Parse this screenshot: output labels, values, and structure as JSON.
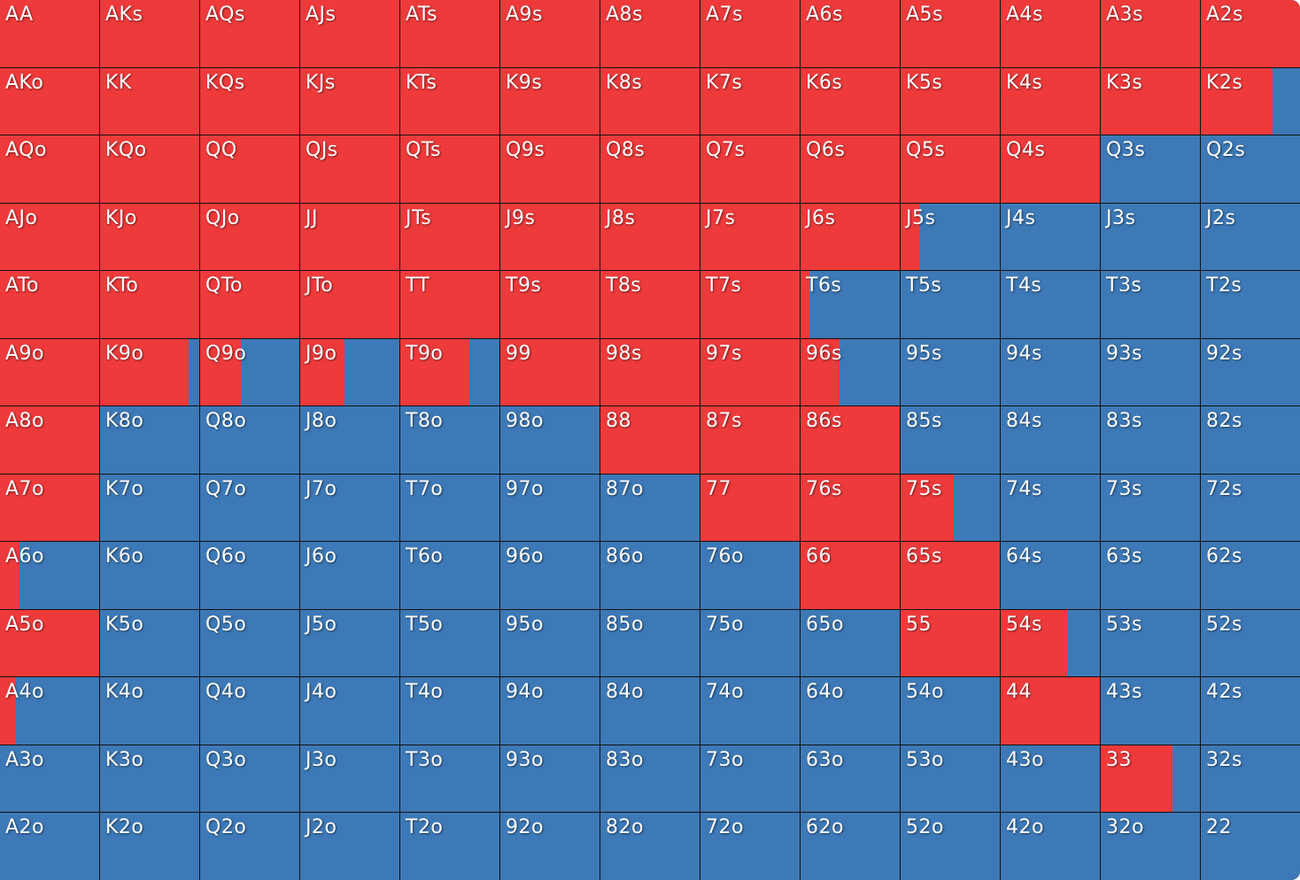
{
  "colors": {
    "raise": "#ee3a3b",
    "fold": "#3d79b7",
    "grid_line": "#111111",
    "label": "#ffffff"
  },
  "range": {
    "rows": [
      [
        [
          "AA",
          1
        ],
        [
          "AKs",
          1
        ],
        [
          "AQs",
          1
        ],
        [
          "AJs",
          1
        ],
        [
          "ATs",
          1
        ],
        [
          "A9s",
          1
        ],
        [
          "A8s",
          1
        ],
        [
          "A7s",
          1
        ],
        [
          "A6s",
          1
        ],
        [
          "A5s",
          1
        ],
        [
          "A4s",
          1
        ],
        [
          "A3s",
          1
        ],
        [
          "A2s",
          1
        ]
      ],
      [
        [
          "AKo",
          1
        ],
        [
          "KK",
          1
        ],
        [
          "KQs",
          1
        ],
        [
          "KJs",
          1
        ],
        [
          "KTs",
          1
        ],
        [
          "K9s",
          1
        ],
        [
          "K8s",
          1
        ],
        [
          "K7s",
          1
        ],
        [
          "K6s",
          1
        ],
        [
          "K5s",
          1
        ],
        [
          "K4s",
          1
        ],
        [
          "K3s",
          1
        ],
        [
          "K2s",
          0.72
        ]
      ],
      [
        [
          "AQo",
          1
        ],
        [
          "KQo",
          1
        ],
        [
          "QQ",
          1
        ],
        [
          "QJs",
          1
        ],
        [
          "QTs",
          1
        ],
        [
          "Q9s",
          1
        ],
        [
          "Q8s",
          1
        ],
        [
          "Q7s",
          1
        ],
        [
          "Q6s",
          1
        ],
        [
          "Q5s",
          1
        ],
        [
          "Q4s",
          1
        ],
        [
          "Q3s",
          0
        ],
        [
          "Q2s",
          0
        ]
      ],
      [
        [
          "AJo",
          1
        ],
        [
          "KJo",
          1
        ],
        [
          "QJo",
          1
        ],
        [
          "JJ",
          1
        ],
        [
          "JTs",
          1
        ],
        [
          "J9s",
          1
        ],
        [
          "J8s",
          1
        ],
        [
          "J7s",
          1
        ],
        [
          "J6s",
          1
        ],
        [
          "J5s",
          0.2
        ],
        [
          "J4s",
          0
        ],
        [
          "J3s",
          0
        ],
        [
          "J2s",
          0
        ]
      ],
      [
        [
          "ATo",
          1
        ],
        [
          "KTo",
          1
        ],
        [
          "QTo",
          1
        ],
        [
          "JTo",
          1
        ],
        [
          "TT",
          1
        ],
        [
          "T9s",
          1
        ],
        [
          "T8s",
          1
        ],
        [
          "T7s",
          1
        ],
        [
          "T6s",
          0.09
        ],
        [
          "T5s",
          0
        ],
        [
          "T4s",
          0
        ],
        [
          "T3s",
          0
        ],
        [
          "T2s",
          0
        ]
      ],
      [
        [
          "A9o",
          1
        ],
        [
          "K9o",
          0.89
        ],
        [
          "Q9o",
          0.41
        ],
        [
          "J9o",
          0.45
        ],
        [
          "T9o",
          0.7
        ],
        [
          "99",
          1
        ],
        [
          "98s",
          1
        ],
        [
          "97s",
          1
        ],
        [
          "96s",
          0.39
        ],
        [
          "95s",
          0
        ],
        [
          "94s",
          0
        ],
        [
          "93s",
          0
        ],
        [
          "92s",
          0
        ]
      ],
      [
        [
          "A8o",
          1
        ],
        [
          "K8o",
          0
        ],
        [
          "Q8o",
          0
        ],
        [
          "J8o",
          0
        ],
        [
          "T8o",
          0
        ],
        [
          "98o",
          0
        ],
        [
          "88",
          1
        ],
        [
          "87s",
          1
        ],
        [
          "86s",
          1
        ],
        [
          "85s",
          0
        ],
        [
          "84s",
          0
        ],
        [
          "83s",
          0
        ],
        [
          "82s",
          0
        ]
      ],
      [
        [
          "A7o",
          1
        ],
        [
          "K7o",
          0
        ],
        [
          "Q7o",
          0
        ],
        [
          "J7o",
          0
        ],
        [
          "T7o",
          0
        ],
        [
          "97o",
          0
        ],
        [
          "87o",
          0
        ],
        [
          "77",
          1
        ],
        [
          "76s",
          1
        ],
        [
          "75s",
          0.54
        ],
        [
          "74s",
          0
        ],
        [
          "73s",
          0
        ],
        [
          "72s",
          0
        ]
      ],
      [
        [
          "A6o",
          0.2
        ],
        [
          "K6o",
          0
        ],
        [
          "Q6o",
          0
        ],
        [
          "J6o",
          0
        ],
        [
          "T6o",
          0
        ],
        [
          "96o",
          0
        ],
        [
          "86o",
          0
        ],
        [
          "76o",
          0
        ],
        [
          "66",
          1
        ],
        [
          "65s",
          1
        ],
        [
          "64s",
          0
        ],
        [
          "63s",
          0
        ],
        [
          "62s",
          0
        ]
      ],
      [
        [
          "A5o",
          1
        ],
        [
          "K5o",
          0
        ],
        [
          "Q5o",
          0
        ],
        [
          "J5o",
          0
        ],
        [
          "T5o",
          0
        ],
        [
          "95o",
          0
        ],
        [
          "85o",
          0
        ],
        [
          "75o",
          0
        ],
        [
          "65o",
          0
        ],
        [
          "55",
          1
        ],
        [
          "54s",
          0.67
        ],
        [
          "53s",
          0
        ],
        [
          "52s",
          0
        ]
      ],
      [
        [
          "A4o",
          0.16
        ],
        [
          "K4o",
          0
        ],
        [
          "Q4o",
          0
        ],
        [
          "J4o",
          0
        ],
        [
          "T4o",
          0
        ],
        [
          "94o",
          0
        ],
        [
          "84o",
          0
        ],
        [
          "74o",
          0
        ],
        [
          "64o",
          0
        ],
        [
          "54o",
          0
        ],
        [
          "44",
          1
        ],
        [
          "43s",
          0
        ],
        [
          "42s",
          0
        ]
      ],
      [
        [
          "A3o",
          0
        ],
        [
          "K3o",
          0
        ],
        [
          "Q3o",
          0
        ],
        [
          "J3o",
          0
        ],
        [
          "T3o",
          0
        ],
        [
          "93o",
          0
        ],
        [
          "83o",
          0
        ],
        [
          "73o",
          0
        ],
        [
          "63o",
          0
        ],
        [
          "53o",
          0
        ],
        [
          "43o",
          0
        ],
        [
          "33",
          0.72
        ],
        [
          "32s",
          0
        ]
      ],
      [
        [
          "A2o",
          0
        ],
        [
          "K2o",
          0
        ],
        [
          "Q2o",
          0
        ],
        [
          "J2o",
          0
        ],
        [
          "T2o",
          0
        ],
        [
          "92o",
          0
        ],
        [
          "82o",
          0
        ],
        [
          "72o",
          0
        ],
        [
          "62o",
          0
        ],
        [
          "52o",
          0
        ],
        [
          "42o",
          0
        ],
        [
          "32o",
          0
        ],
        [
          "22",
          0
        ]
      ]
    ]
  }
}
